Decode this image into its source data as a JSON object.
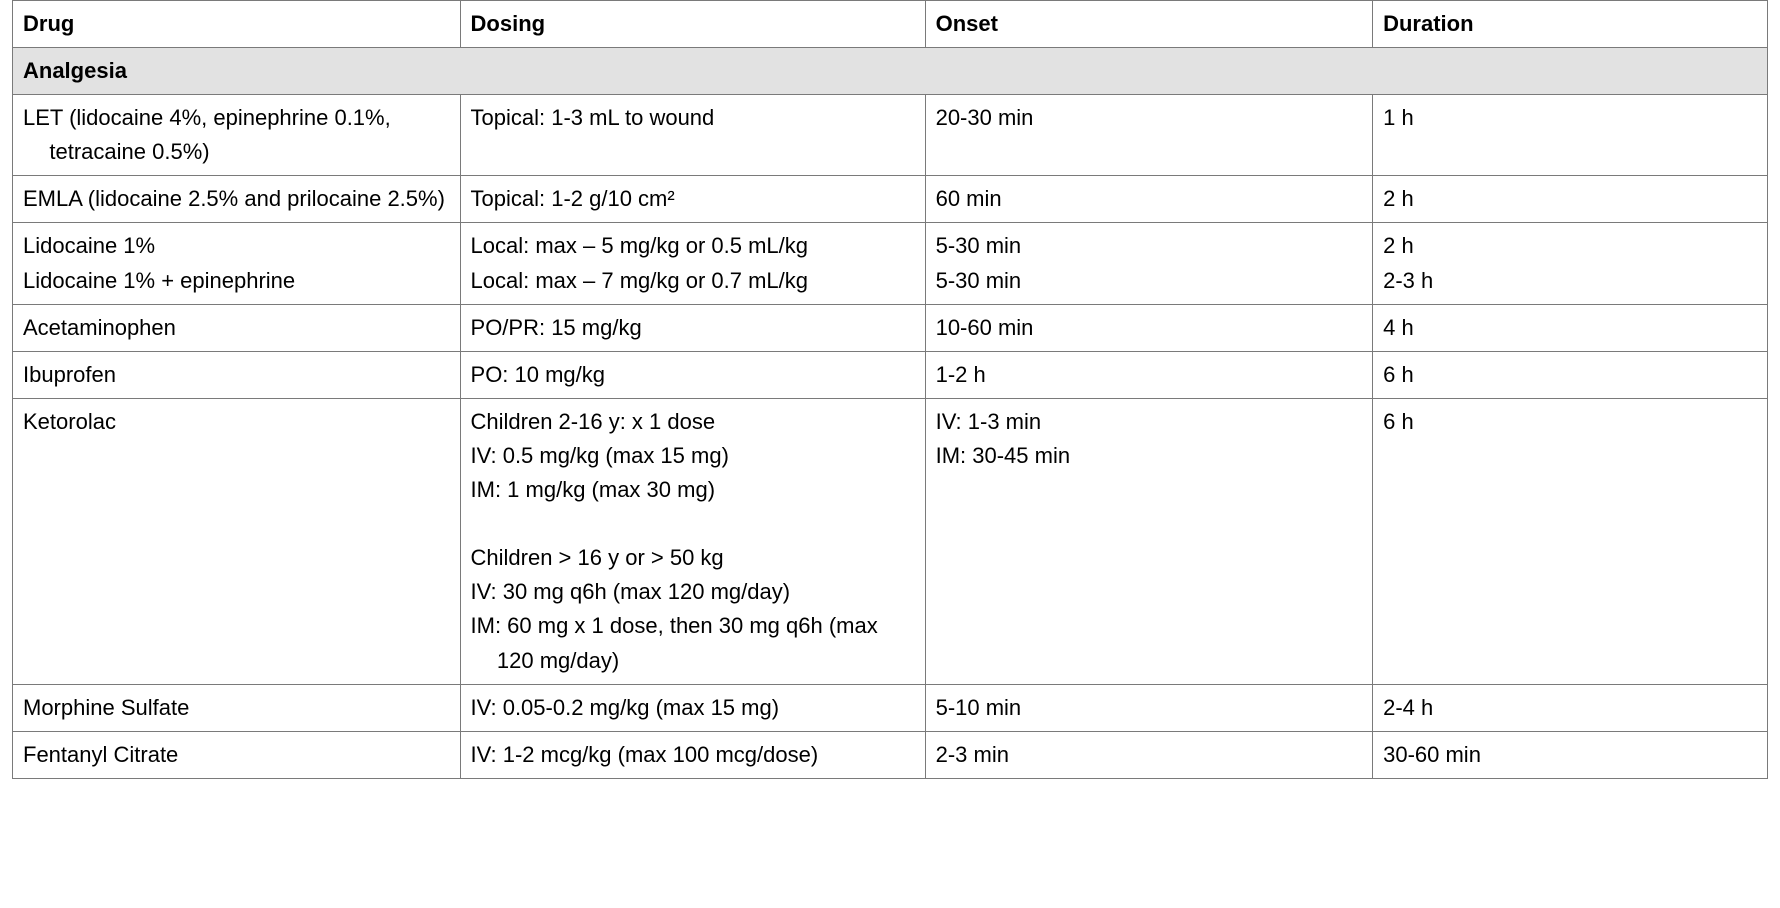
{
  "columns": [
    "Drug",
    "Dosing",
    "Onset",
    "Duration"
  ],
  "section": "Analgesia",
  "rows": [
    {
      "drug": [
        {
          "t": "LET (lidocaine 4%, epinephrine 0.1%, tetracaine 0.5%)",
          "cls": "hang"
        }
      ],
      "dosing": [
        {
          "t": "Topical: 1-3 mL to wound",
          "cls": "line"
        }
      ],
      "onset": [
        {
          "t": "20-30 min",
          "cls": "line"
        }
      ],
      "duration": [
        {
          "t": "1 h",
          "cls": "line"
        }
      ]
    },
    {
      "drug": [
        {
          "t": "EMLA (lidocaine 2.5% and prilocaine 2.5%)",
          "cls": "hang"
        }
      ],
      "dosing": [
        {
          "t": "Topical: 1-2 g/10 cm²",
          "cls": "line"
        }
      ],
      "onset": [
        {
          "t": "60 min",
          "cls": "line"
        }
      ],
      "duration": [
        {
          "t": "2 h",
          "cls": "line"
        }
      ]
    },
    {
      "drug": [
        {
          "t": "Lidocaine 1%",
          "cls": "line"
        },
        {
          "t": "Lidocaine 1% + epinephrine",
          "cls": "line"
        }
      ],
      "dosing": [
        {
          "t": "Local: max – 5 mg/kg or 0.5 mL/kg",
          "cls": "line"
        },
        {
          "t": "Local: max – 7 mg/kg or 0.7 mL/kg",
          "cls": "line"
        }
      ],
      "onset": [
        {
          "t": "5-30 min",
          "cls": "line"
        },
        {
          "t": "5-30 min",
          "cls": "line"
        }
      ],
      "duration": [
        {
          "t": "2 h",
          "cls": "line"
        },
        {
          "t": "2-3 h",
          "cls": "line"
        }
      ]
    },
    {
      "drug": [
        {
          "t": "Acetaminophen",
          "cls": "line"
        }
      ],
      "dosing": [
        {
          "t": "PO/PR: 15 mg/kg",
          "cls": "line"
        }
      ],
      "onset": [
        {
          "t": "10-60 min",
          "cls": "line"
        }
      ],
      "duration": [
        {
          "t": "4 h",
          "cls": "line"
        }
      ]
    },
    {
      "drug": [
        {
          "t": "Ibuprofen",
          "cls": "line"
        }
      ],
      "dosing": [
        {
          "t": "PO: 10 mg/kg",
          "cls": "line"
        }
      ],
      "onset": [
        {
          "t": "1-2 h",
          "cls": "line"
        }
      ],
      "duration": [
        {
          "t": "6 h",
          "cls": "line"
        }
      ]
    },
    {
      "drug": [
        {
          "t": "Ketorolac",
          "cls": "line"
        }
      ],
      "dosing": [
        {
          "t": "Children 2-16 y: x 1 dose",
          "cls": "line"
        },
        {
          "t": "IV: 0.5 mg/kg (max 15 mg)",
          "cls": "line"
        },
        {
          "t": "IM: 1 mg/kg (max 30 mg)",
          "cls": "line"
        },
        {
          "t": "",
          "cls": "gap"
        },
        {
          "t": "Children > 16 y or > 50 kg",
          "cls": "line"
        },
        {
          "t": "IV: 30 mg q6h (max 120 mg/day)",
          "cls": "line"
        },
        {
          "t": "IM: 60 mg x 1 dose, then 30 mg q6h (max 120 mg/day)",
          "cls": "hang"
        }
      ],
      "onset": [
        {
          "t": "IV: 1-3 min",
          "cls": "line"
        },
        {
          "t": "IM: 30-45 min",
          "cls": "line"
        }
      ],
      "duration": [
        {
          "t": "6 h",
          "cls": "line"
        }
      ]
    },
    {
      "drug": [
        {
          "t": "Morphine Sulfate",
          "cls": "line"
        }
      ],
      "dosing": [
        {
          "t": "IV: 0.05-0.2 mg/kg (max 15 mg)",
          "cls": "line"
        }
      ],
      "onset": [
        {
          "t": "5-10 min",
          "cls": "line"
        }
      ],
      "duration": [
        {
          "t": "2-4 h",
          "cls": "line"
        }
      ]
    },
    {
      "drug": [
        {
          "t": "Fentanyl Citrate",
          "cls": "line"
        }
      ],
      "dosing": [
        {
          "t": "IV: 1-2 mcg/kg (max 100 mcg/dose)",
          "cls": "line"
        }
      ],
      "onset": [
        {
          "t": "2-3 min",
          "cls": "line"
        }
      ],
      "duration": [
        {
          "t": "30-60 min",
          "cls": "line"
        }
      ]
    }
  ]
}
